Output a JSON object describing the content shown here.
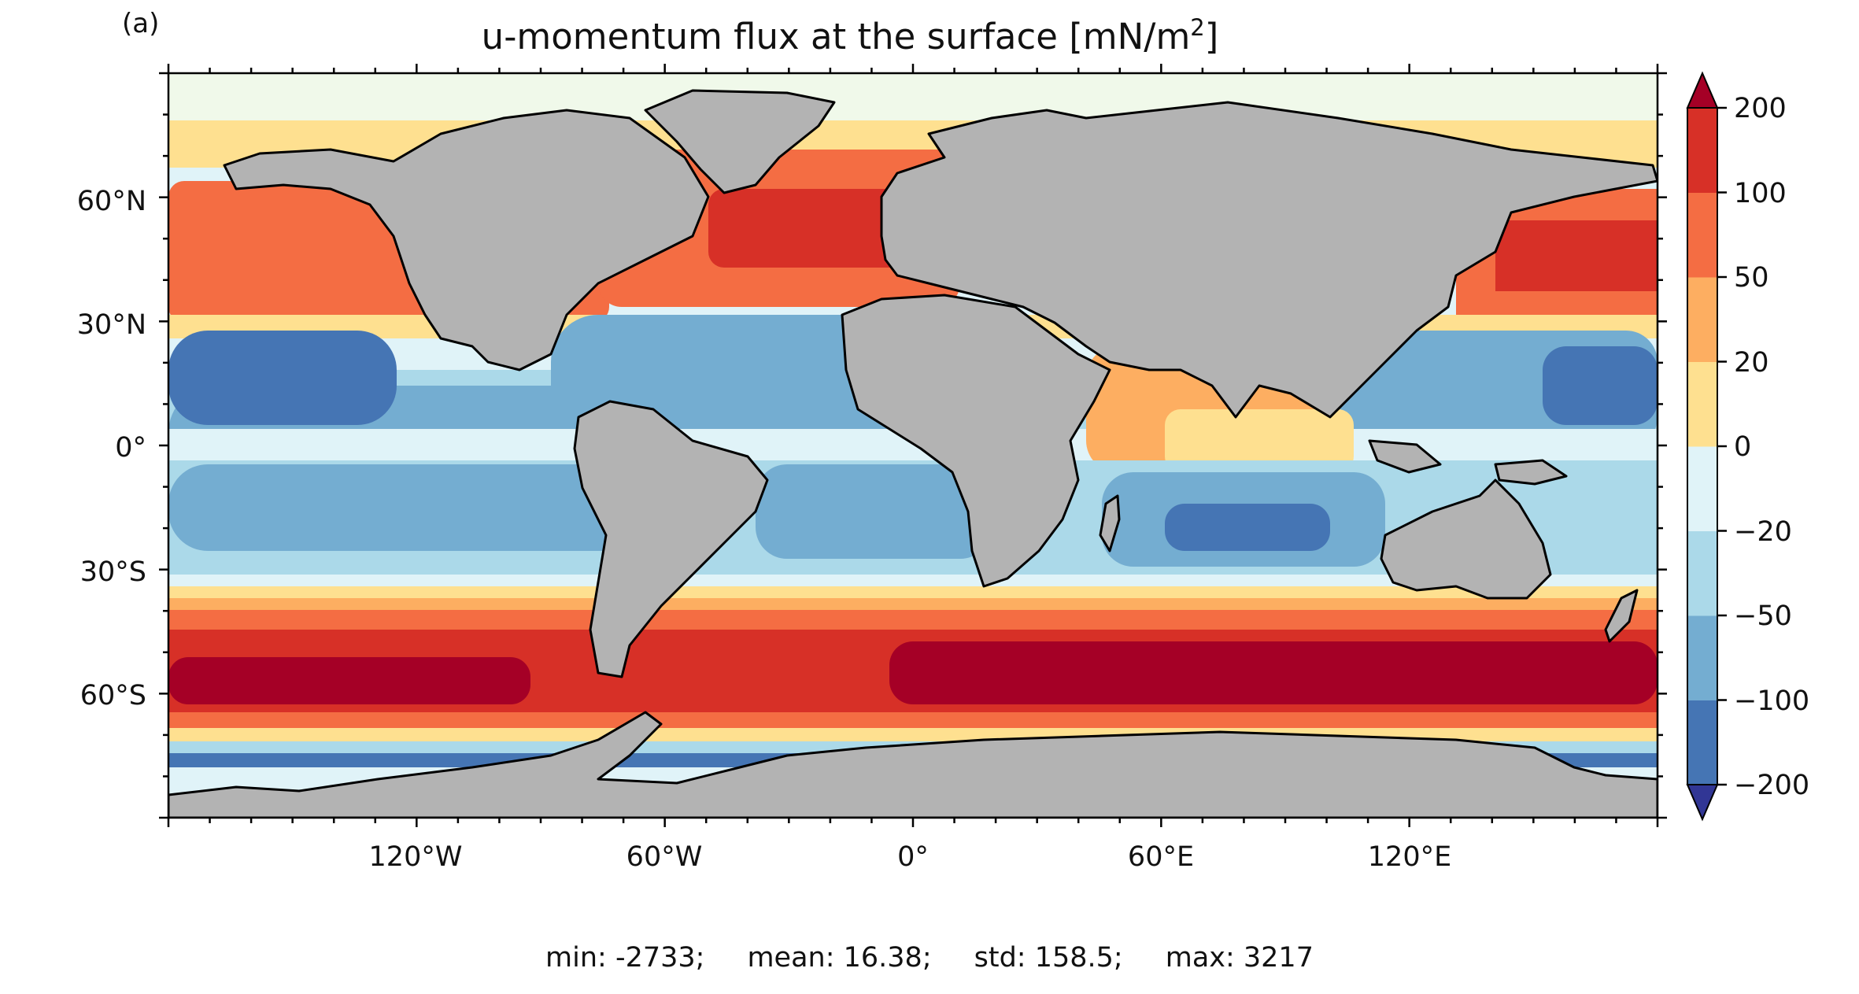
{
  "panel_label": "(a)",
  "title": {
    "text": "u-momentum flux at the surface [mN/m",
    "superscript": "2",
    "suffix": "]"
  },
  "map": {
    "projection": "equirectangular",
    "x_ticks": [
      "120°W",
      "60°W",
      "0°",
      "60°E",
      "120°E"
    ],
    "y_ticks": [
      "60°N",
      "30°N",
      "0°",
      "30°S",
      "60°S"
    ],
    "land_color": "#b3b3b3",
    "coastline_color": "#000000"
  },
  "colorbar": {
    "levels": [
      -200,
      -100,
      -50,
      -20,
      0,
      20,
      50,
      100,
      200
    ],
    "tick_labels": [
      "200",
      "100",
      "50",
      "20",
      "0",
      "−20",
      "−50",
      "−100",
      "−200"
    ],
    "colors_bottom_to_top": [
      "#4575b4",
      "#74add1",
      "#abd9e9",
      "#e0f3f8",
      "#fee090",
      "#fdae61",
      "#f46d43",
      "#d73027"
    ],
    "over_color": "#a50026",
    "under_color": "#313695",
    "extend": "both"
  },
  "stats": {
    "min": "min: -2733;",
    "mean": "mean: 16.38;",
    "std": "std: 158.5;",
    "max": "max: 3217"
  }
}
